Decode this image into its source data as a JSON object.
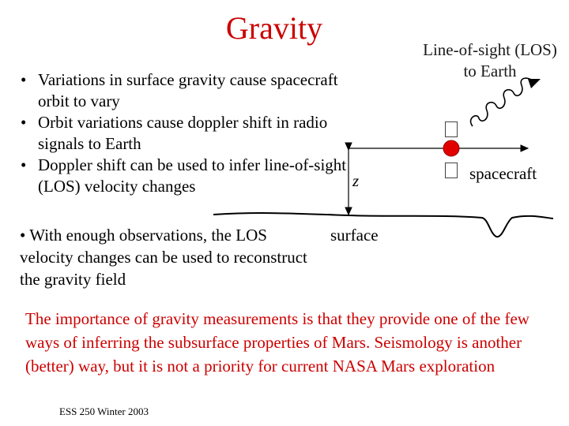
{
  "slide": {
    "title": "Gravity",
    "bullets": [
      "Variations in surface gravity cause spacecraft orbit to vary",
      "Orbit variations cause doppler shift in radio signals to Earth",
      "Doppler shift can be used to infer line-of-sight (LOS) velocity changes"
    ],
    "extra_bullet": "• With enough observations, the LOS velocity changes can be used to reconstruct the gravity field",
    "diagram": {
      "los_label": "Line-of-sight (LOS) to Earth",
      "spacecraft_label": "spacecraft",
      "z_label": "z",
      "surface_label": "surface"
    },
    "importance": "The importance of gravity measurements is that they provide one of the few ways of inferring the subsurface properties of Mars. Seismology is another (better) way, but it is not a priority for current NASA Mars exploration",
    "footer": "ESS 250 Winter 2003",
    "colors": {
      "accent": "#cc0000",
      "text": "#000000"
    }
  }
}
